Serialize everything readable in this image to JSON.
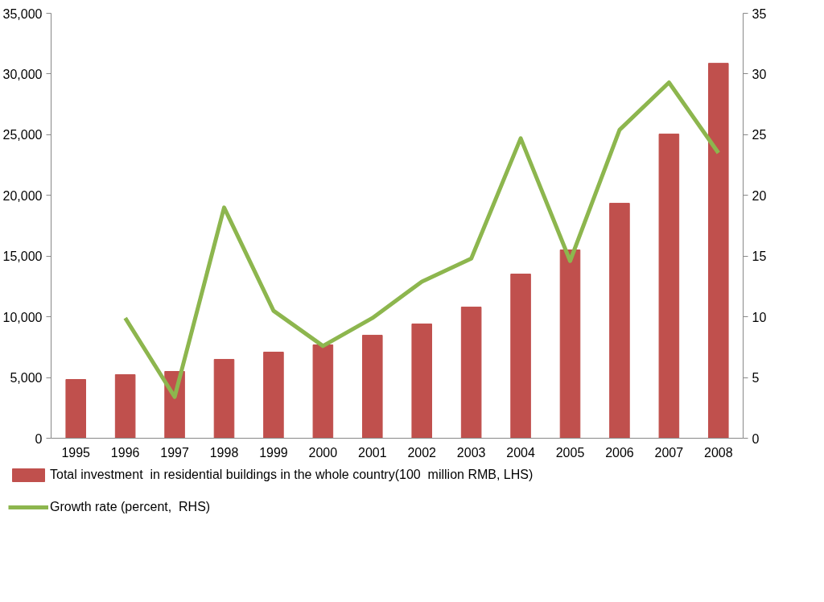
{
  "chart_data": {
    "type": "bar",
    "categories": [
      "1995",
      "1996",
      "1997",
      "1998",
      "1999",
      "2000",
      "2001",
      "2002",
      "2003",
      "2004",
      "2005",
      "2006",
      "2007",
      "2008"
    ],
    "series": [
      {
        "name": "Total investment  in residential buildings in the whole country(100  million RMB, LHS)",
        "color": "#c0504d",
        "values": [
          4840,
          5240,
          5500,
          6490,
          7090,
          7690,
          8480,
          9410,
          10800,
          13520,
          15510,
          19350,
          25050,
          30880
        ]
      },
      {
        "name": "Growth rate (percent,  RHS)",
        "type": "line",
        "axis": "y2",
        "color": "#8db64e",
        "values": [
          null,
          9.9,
          3.4,
          19.0,
          10.5,
          7.6,
          9.9,
          12.9,
          14.8,
          24.7,
          14.6,
          25.4,
          29.3,
          23.5
        ]
      }
    ],
    "ylim": [
      0,
      35000
    ],
    "yticks": [
      {
        "value": 0,
        "label": "0"
      },
      {
        "value": 5000,
        "label": "5,000"
      },
      {
        "value": 10000,
        "label": "10,000"
      },
      {
        "value": 15000,
        "label": "15,000"
      },
      {
        "value": 20000,
        "label": "20,000"
      },
      {
        "value": 25000,
        "label": "25,000"
      },
      {
        "value": 30000,
        "label": "30,000"
      },
      {
        "value": 35000,
        "label": "35,000"
      }
    ],
    "y2lim": [
      0,
      35
    ],
    "y2ticks": [
      0,
      5,
      10,
      15,
      20,
      25,
      30,
      35
    ],
    "grid": false,
    "legend": "bottom"
  }
}
